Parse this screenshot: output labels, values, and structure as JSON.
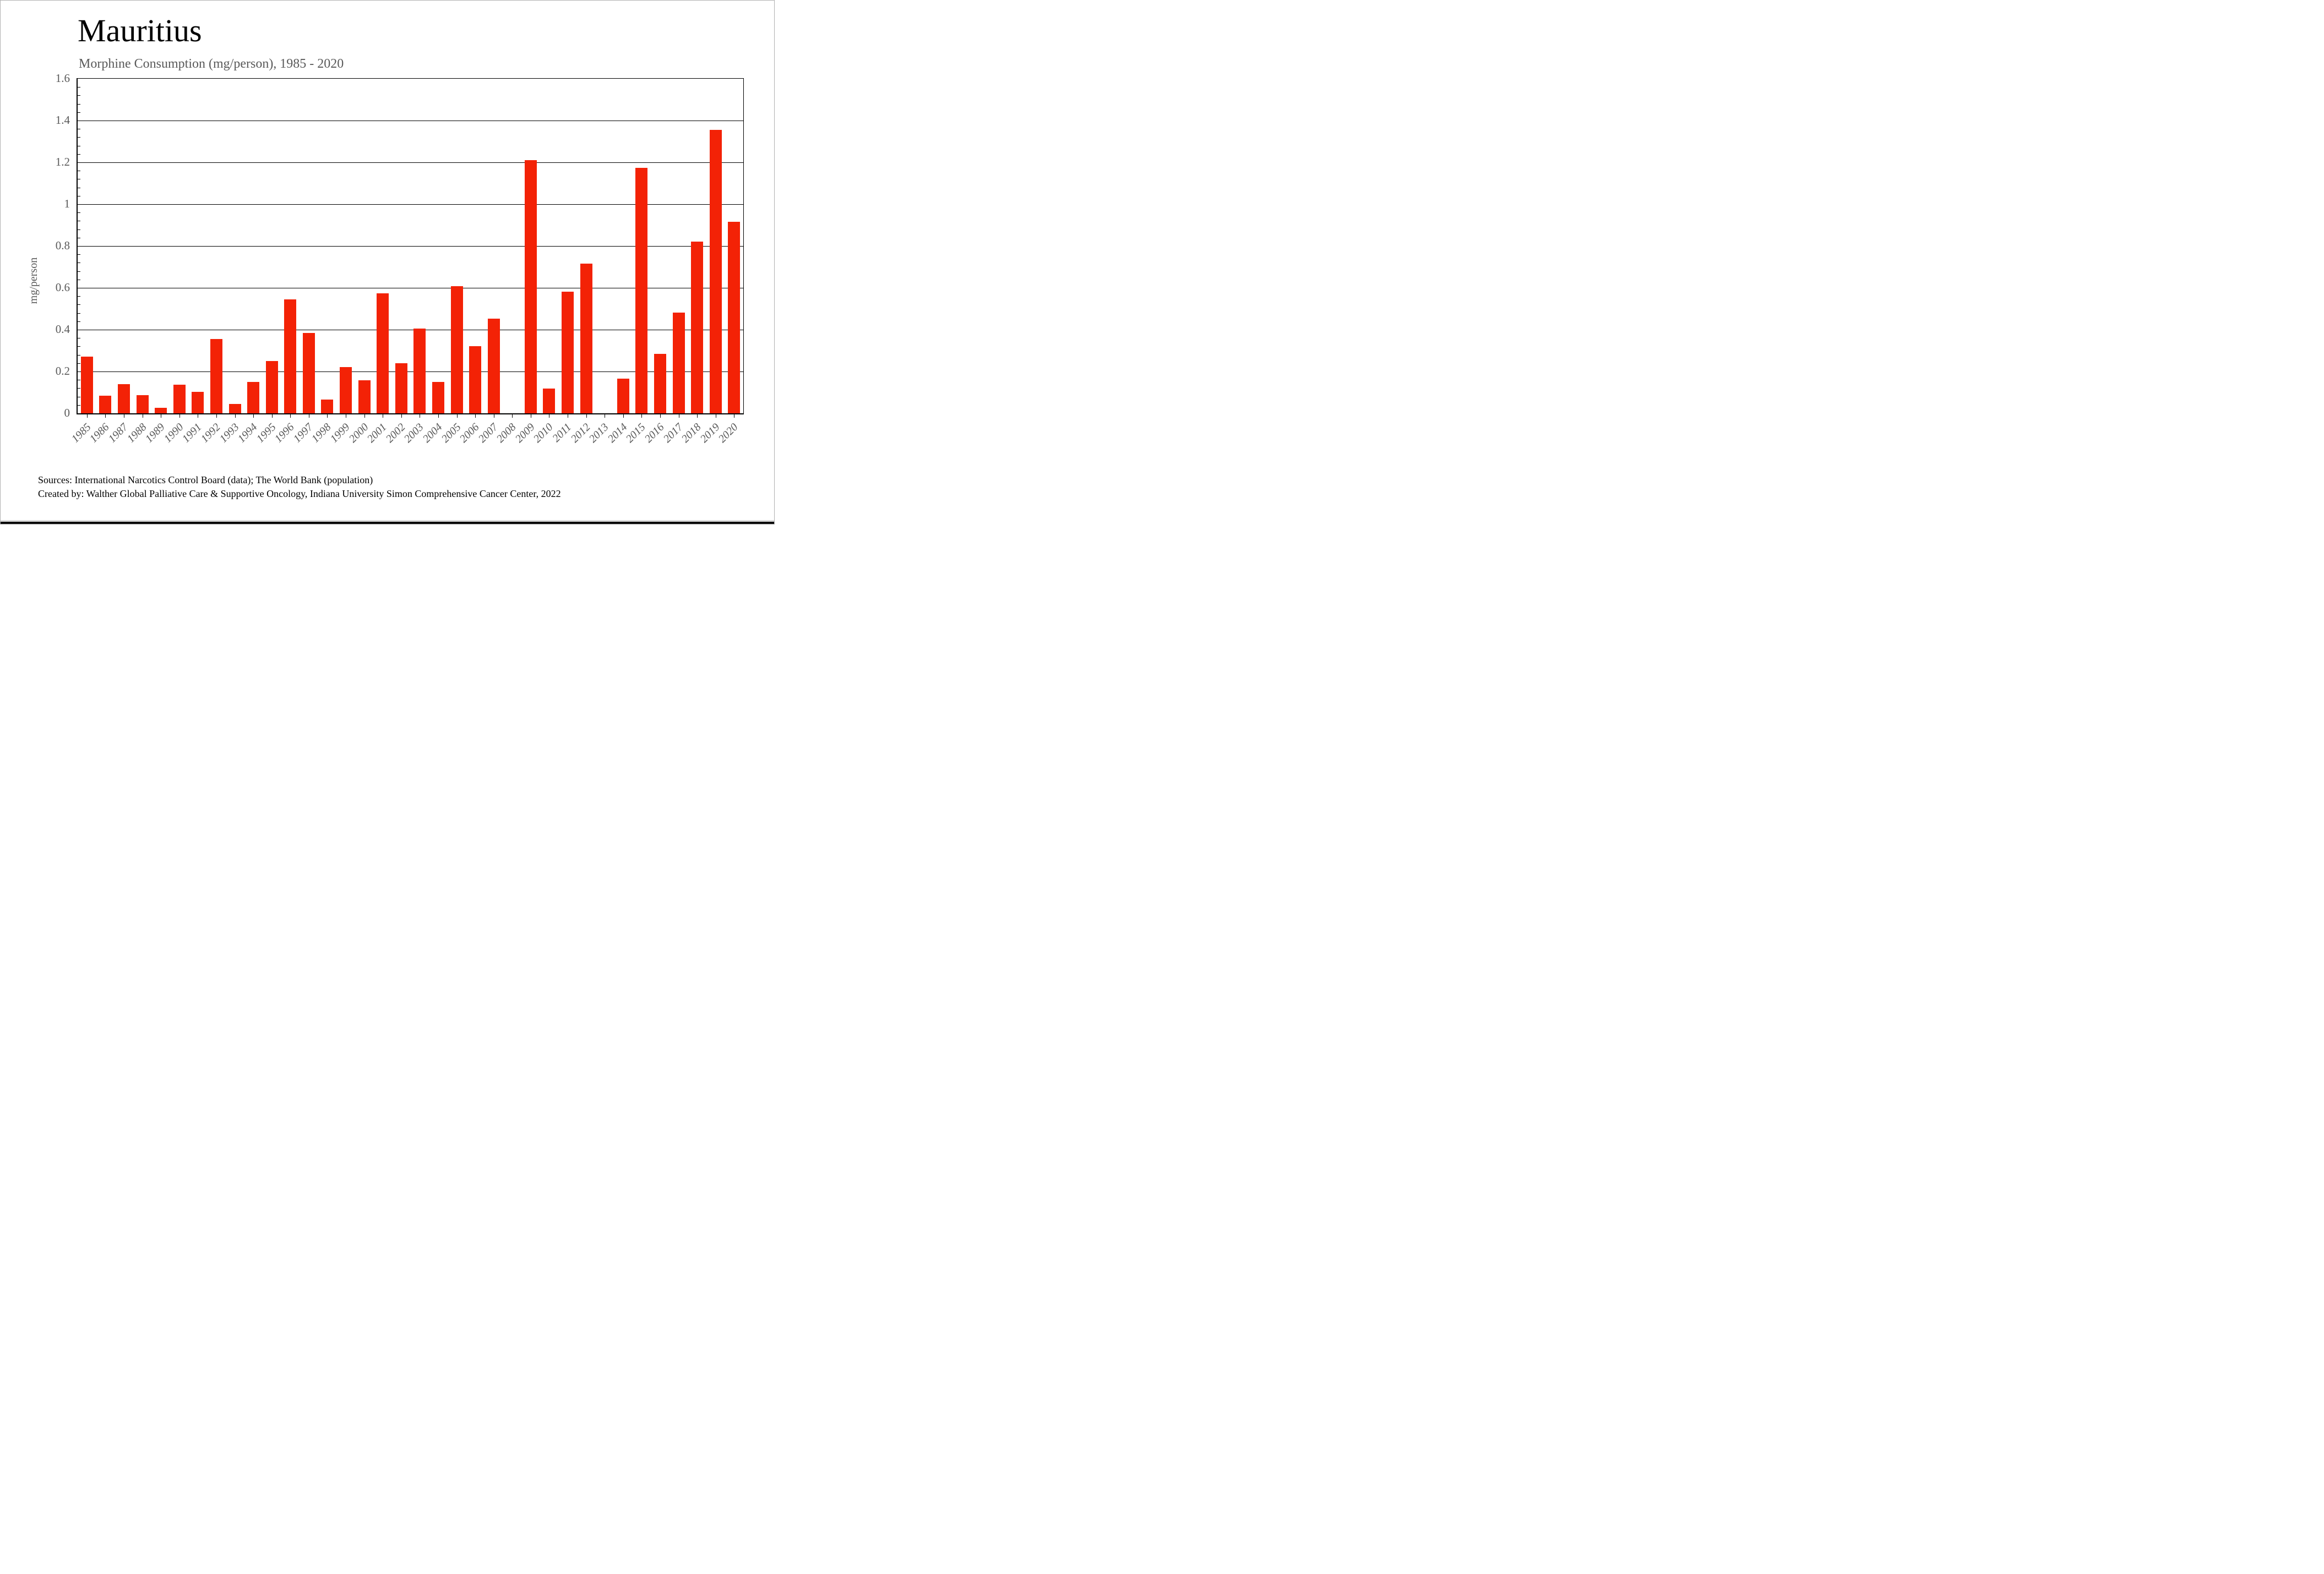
{
  "title": "Mauritius",
  "subtitle": "Morphine Consumption (mg/person), 1985 - 2020",
  "chart_data": {
    "type": "bar",
    "title": "Morphine Consumption (mg/person), 1985 - 2020",
    "categories": [
      "1985",
      "1986",
      "1987",
      "1988",
      "1989",
      "1990",
      "1991",
      "1992",
      "1993",
      "1994",
      "1995",
      "1996",
      "1997",
      "1998",
      "1999",
      "2000",
      "2001",
      "2002",
      "2003",
      "2004",
      "2005",
      "2006",
      "2007",
      "2008",
      "2009",
      "2010",
      "2011",
      "2012",
      "2013",
      "2014",
      "2015",
      "2016",
      "2017",
      "2018",
      "2019",
      "2020"
    ],
    "values": [
      0.27,
      0.085,
      0.14,
      0.086,
      0.027,
      0.138,
      0.102,
      0.355,
      0.045,
      0.15,
      0.25,
      0.545,
      0.385,
      0.066,
      0.222,
      0.159,
      0.575,
      0.24,
      0.405,
      0.149,
      0.608,
      0.322,
      0.454,
      0,
      1.21,
      0.118,
      0.583,
      0.717,
      0,
      0.166,
      1.175,
      0.284,
      0.483,
      0.822,
      1.355,
      0.915
    ],
    "xlabel": "",
    "ylabel": "mg/person",
    "ylim": [
      0,
      1.6
    ],
    "ytick_step": 0.2,
    "ytick_labels": [
      "0",
      "0.2",
      "0.4",
      "0.6",
      "0.8",
      "1",
      "1.2",
      "1.4",
      "1.6"
    ],
    "minor_tick_step": 0.04,
    "grid": true,
    "legend": "none",
    "bar_color": "#f32206",
    "axis_color": "#000000",
    "tick_label_color": "#595959"
  },
  "footer": {
    "line1": "Sources: International Narcotics Control Board (data); The World Bank (population)",
    "line2": "Created by: Walther  Global Palliative Care & Supportive Oncology, Indiana University Simon Comprehensive Cancer Center, 2022"
  }
}
